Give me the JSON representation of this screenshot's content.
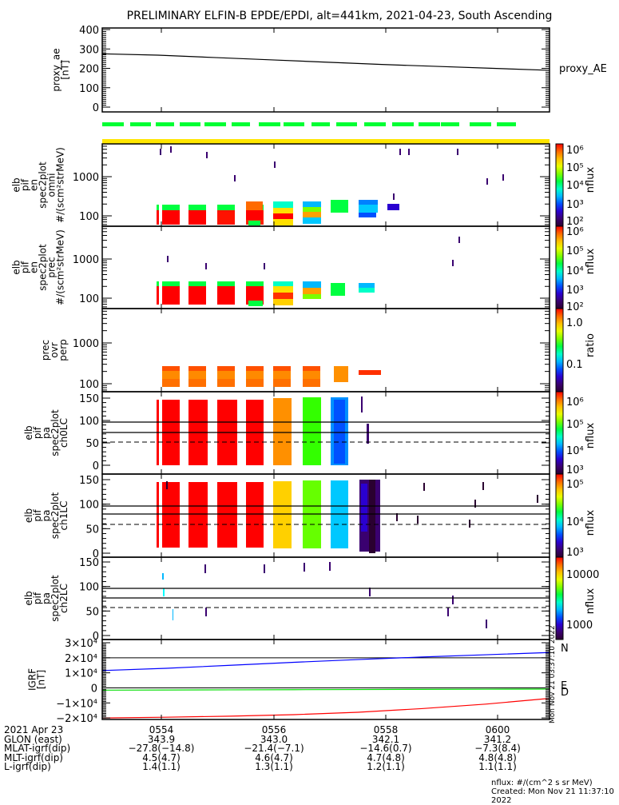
{
  "title": "PRELIMINARY ELFIN-B EPDE/EPDI, alt=441km, 2021-04-23, South Ascending",
  "time_ticks": [
    "0554",
    "0556",
    "0558",
    "0600"
  ],
  "footer": {
    "rows": [
      {
        "label": "2021 Apr 23",
        "values": [
          "0554",
          "0556",
          "0558",
          "0600"
        ]
      },
      {
        "label": "GLON (east)",
        "values": [
          "343.9",
          "343.0",
          "342.1",
          "341.2"
        ]
      },
      {
        "label": "MLAT-igrf(dip)",
        "values": [
          "-27.8(-14.8)",
          "-21.4(-7.1)",
          "-14.6(0.7)",
          "-7.3(8.4)"
        ]
      },
      {
        "label": "MLT-igrf(dip)",
        "values": [
          "4.5(4.7)",
          "4.6(4.7)",
          "4.7(4.8)",
          "4.8(4.8)"
        ]
      },
      {
        "label": "L-igrf(dip)",
        "values": [
          "1.4(1.1)",
          "1.3(1.1)",
          "1.2(1.1)",
          "1.1(1.1)"
        ]
      }
    ],
    "units_note": "nflux: #/(cm^2 s sr MeV)",
    "created": "Created: Mon Nov 21 11:37:10 2022"
  },
  "side_stamp": "Mon Nov 21 03:37:10 2022",
  "colors": {
    "green_bar": "#00ff33",
    "yellow_bar": "#ffe600",
    "igrf_N": "#0000ff",
    "igrf_E": "#00dd00",
    "igrf_D": "#ff0000"
  },
  "chart_data": [
    {
      "type": "line",
      "panel": "proxy_ae",
      "ylabel": [
        "proxy_ae",
        "[nT]"
      ],
      "legend": "proxy_AE",
      "yticks": [
        "0",
        "100",
        "200",
        "300",
        "400"
      ],
      "ylim": [
        0,
        400
      ],
      "x": [
        "0553",
        "0554",
        "0555",
        "0556",
        "0557",
        "0558",
        "0559",
        "0600",
        "0601"
      ],
      "values": [
        275,
        268,
        256,
        244,
        232,
        220,
        210,
        200,
        190
      ]
    },
    {
      "type": "heatmap",
      "panel": "en_omni",
      "ylabel": [
        "elb",
        "pif",
        "en",
        "spec2plot",
        "omni",
        "#/(scm²strMeV)"
      ],
      "yscale": "log",
      "yticks": [
        "100",
        "1000"
      ],
      "colorbar": {
        "label": "nflux",
        "ticks": [
          "10²",
          "10³",
          "10⁴",
          "10⁵",
          "10⁶"
        ]
      }
    },
    {
      "type": "heatmap",
      "panel": "en_prec",
      "ylabel": [
        "elb",
        "pif",
        "en",
        "spec2plot",
        "prec",
        "#/(scm²strMeV)"
      ],
      "yscale": "log",
      "yticks": [
        "100",
        "1000"
      ],
      "colorbar": {
        "label": "nflux",
        "ticks": [
          "10²",
          "10³",
          "10⁴",
          "10⁵",
          "10⁶"
        ]
      }
    },
    {
      "type": "heatmap",
      "panel": "prec_ovr_perp",
      "ylabel": [
        "prec",
        "ovr",
        "perp"
      ],
      "yscale": "log",
      "yticks": [
        "100",
        "1000"
      ],
      "colorbar": {
        "label": "ratio",
        "ticks": [
          "0.1",
          "1.0"
        ]
      }
    },
    {
      "type": "heatmap",
      "panel": "pa_ch0LC",
      "ylabel": [
        "elb",
        "pif",
        "pa",
        "spec2plot",
        "ch0LC"
      ],
      "yticks": [
        "0",
        "50",
        "100",
        "150"
      ],
      "ylim": [
        0,
        180
      ],
      "colorbar": {
        "label": "nflux",
        "ticks": [
          "10³",
          "10⁴",
          "10⁵",
          "10⁶"
        ]
      }
    },
    {
      "type": "heatmap",
      "panel": "pa_ch1LC",
      "ylabel": [
        "elb",
        "pif",
        "pa",
        "spec2plot",
        "ch1LC"
      ],
      "yticks": [
        "0",
        "50",
        "100",
        "150"
      ],
      "ylim": [
        0,
        180
      ],
      "colorbar": {
        "label": "nflux",
        "ticks": [
          "10³",
          "10⁴",
          "10⁵"
        ]
      }
    },
    {
      "type": "heatmap",
      "panel": "pa_ch2LC",
      "ylabel": [
        "elb",
        "pif",
        "pa",
        "spec2plot",
        "ch2LC"
      ],
      "yticks": [
        "0",
        "50",
        "100",
        "150"
      ],
      "ylim": [
        0,
        180
      ],
      "colorbar": {
        "label": "nflux",
        "ticks": [
          "1000",
          "10000"
        ]
      }
    },
    {
      "type": "line",
      "panel": "igrf",
      "ylabel": [
        "IGRF",
        "[nT]"
      ],
      "yticks": [
        "−2×10⁴",
        "−1×10⁴",
        "0",
        "1×10⁴",
        "2×10⁴",
        "3×10⁴"
      ],
      "ylim": [
        -21000,
        30000
      ],
      "series": [
        {
          "name": "N",
          "values": [
            11500,
            13000,
            15000,
            17000,
            18800,
            20500,
            22000,
            23500
          ]
        },
        {
          "name": "E",
          "values": [
            -1500,
            -1400,
            -1300,
            -1200,
            -1100,
            -1000,
            -900,
            -800
          ]
        },
        {
          "name": "D",
          "values": [
            -20000,
            -19500,
            -18800,
            -17800,
            -16200,
            -13800,
            -10800,
            -7000
          ]
        }
      ]
    }
  ]
}
